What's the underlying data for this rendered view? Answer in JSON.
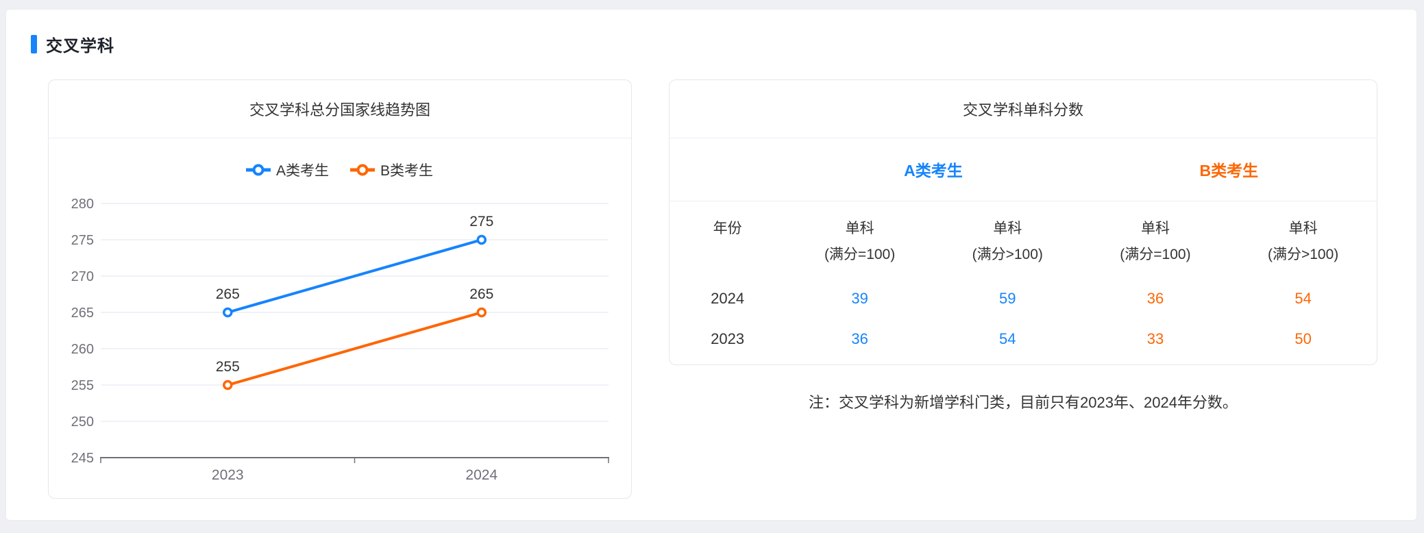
{
  "section": {
    "title": "交叉学科"
  },
  "colors": {
    "blue": "#1684fc",
    "orange": "#fe6605",
    "grid_line": "#e0e6f1",
    "axis_line": "#6e7079",
    "axis_label": "#6e7079",
    "text": "#333333",
    "accent_bar": "#1684fc"
  },
  "trend_chart": {
    "title": "交叉学科总分国家线趋势图"
  },
  "chart_data": {
    "type": "line",
    "title": "交叉学科总分国家线趋势图",
    "categories": [
      "2023",
      "2024"
    ],
    "series": [
      {
        "name": "A类考生",
        "color": "#1684fc",
        "values": [
          265,
          275
        ]
      },
      {
        "name": "B类考生",
        "color": "#fe6605",
        "values": [
          255,
          265
        ]
      }
    ],
    "point_labels": [
      [
        "265",
        "275"
      ],
      [
        "255",
        "265"
      ]
    ],
    "ylim": [
      245,
      280
    ],
    "yticks": [
      245,
      250,
      255,
      260,
      265,
      270,
      275,
      280
    ],
    "grid": true,
    "legend_position": "top",
    "xlabel": "",
    "ylabel": ""
  },
  "score_table": {
    "title": "交叉学科单科分数",
    "group_headers": [
      {
        "label": "A类考生",
        "color": "#1684fc"
      },
      {
        "label": "B类考生",
        "color": "#fe6605"
      }
    ],
    "columns": [
      {
        "title": "年份",
        "sub": ""
      },
      {
        "title": "单科",
        "sub": "(满分=100)"
      },
      {
        "title": "单科",
        "sub": "(满分>100)"
      },
      {
        "title": "单科",
        "sub": "(满分=100)"
      },
      {
        "title": "单科",
        "sub": "(满分>100)"
      }
    ],
    "rows": [
      {
        "year": "2024",
        "a": [
          "39",
          "59"
        ],
        "b": [
          "36",
          "54"
        ]
      },
      {
        "year": "2023",
        "a": [
          "36",
          "54"
        ],
        "b": [
          "33",
          "50"
        ]
      }
    ]
  },
  "note": "注：交叉学科为新增学科门类，目前只有2023年、2024年分数。"
}
